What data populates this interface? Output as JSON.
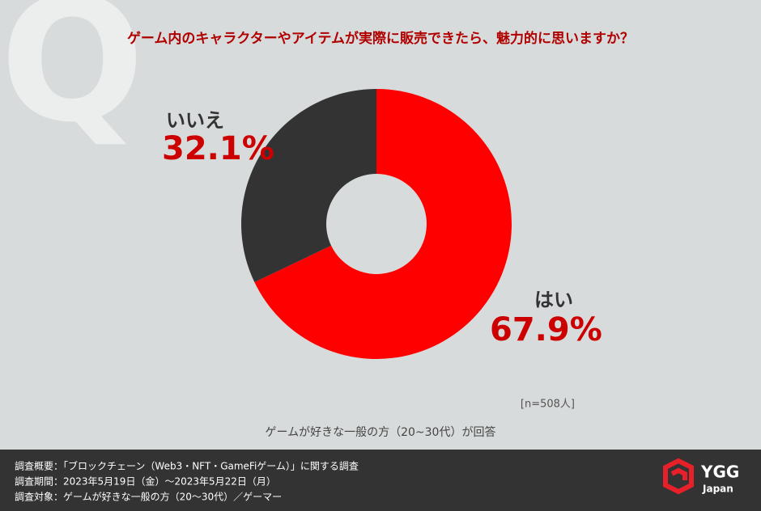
{
  "chart_data": {
    "type": "donut",
    "title": "ゲーム内のキャラクターやアイテムが実際に販売できたら、魅力的に思いますか？",
    "categories": [
      "はい",
      "いいえ"
    ],
    "values": [
      67.9,
      32.1
    ],
    "value_labels": [
      "67.9%",
      "32.1%"
    ],
    "colors": [
      "#ff0000",
      "#333333"
    ],
    "note": "[n=508人]",
    "subtitle": "ゲームが好きな一般の方（20~30代）が回答"
  },
  "watermark": "Q",
  "footer": {
    "lines": [
      "調査概要：「ブロックチェーン（Web3・NFT・GameFiゲーム）」に関する調査",
      "調査期間：2023年5月19日（金）～2023年5月22日（月）",
      "調査対象：ゲームが好きな一般の方（20～30代）／ゲーマー"
    ]
  },
  "logo": {
    "name": "YGG",
    "sub": "Japan"
  }
}
